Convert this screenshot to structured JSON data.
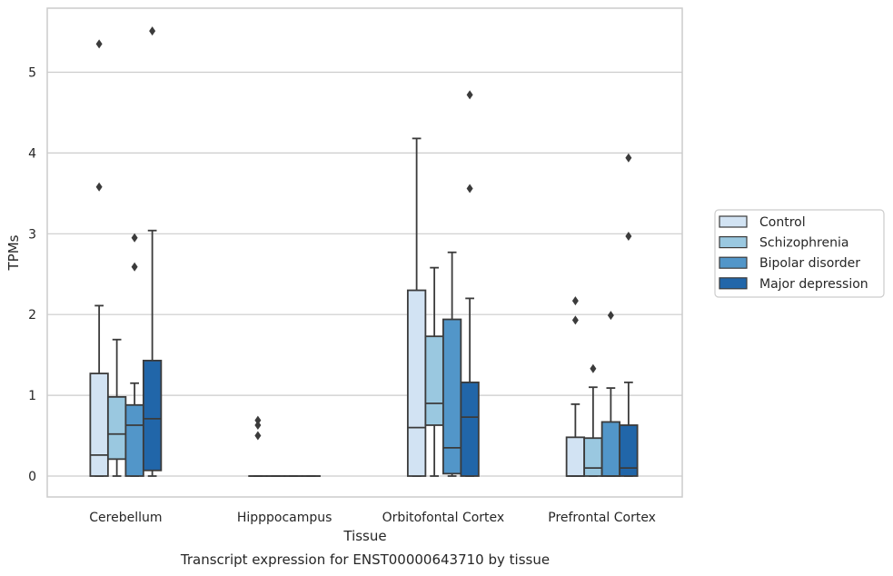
{
  "caption": "Transcript expression for ENST00000643710 by tissue",
  "chart_data": {
    "type": "box",
    "title": "",
    "xlabel": "Tissue",
    "ylabel": "TPMs",
    "ylim": [
      -0.27,
      5.87
    ],
    "yticks": [
      0,
      1,
      2,
      3,
      4,
      5
    ],
    "grid": "horizontal",
    "legend_position": "right",
    "categories": [
      "Cerebellum",
      "Hipppocampus",
      "Orbitofontal Cortex",
      "Prefrontal Cortex"
    ],
    "series": [
      {
        "name": "Control",
        "color": "#d2e3f3",
        "boxes": [
          {
            "whisker_low": 0,
            "q1": 0,
            "median": 0.26,
            "q3": 1.27,
            "whisker_high": 2.11,
            "outliers": [
              3.58,
              5.35
            ]
          },
          {
            "whisker_low": 0,
            "q1": 0,
            "median": 0,
            "q3": 0,
            "whisker_high": 0,
            "outliers": [
              0.5,
              0.63,
              0.69
            ]
          },
          {
            "whisker_low": 0,
            "q1": 0,
            "median": 0.6,
            "q3": 2.3,
            "whisker_high": 4.18,
            "outliers": []
          },
          {
            "whisker_low": 0,
            "q1": 0,
            "median": 0,
            "q3": 0.48,
            "whisker_high": 0.89,
            "outliers": [
              1.93,
              2.17
            ]
          }
        ]
      },
      {
        "name": "Schizophrenia",
        "color": "#9ac8e0",
        "boxes": [
          {
            "whisker_low": 0,
            "q1": 0.21,
            "median": 0.52,
            "q3": 0.98,
            "whisker_high": 1.69,
            "outliers": []
          },
          {
            "whisker_low": 0,
            "q1": 0,
            "median": 0,
            "q3": 0,
            "whisker_high": 0,
            "outliers": []
          },
          {
            "whisker_low": 0,
            "q1": 0.63,
            "median": 0.9,
            "q3": 1.73,
            "whisker_high": 2.58,
            "outliers": []
          },
          {
            "whisker_low": 0,
            "q1": 0,
            "median": 0.1,
            "q3": 0.47,
            "whisker_high": 1.1,
            "outliers": [
              1.33
            ]
          }
        ]
      },
      {
        "name": "Bipolar disorder",
        "color": "#5296c9",
        "boxes": [
          {
            "whisker_low": 0,
            "q1": 0,
            "median": 0.63,
            "q3": 0.88,
            "whisker_high": 1.15,
            "outliers": [
              2.59,
              2.95
            ]
          },
          {
            "whisker_low": 0,
            "q1": 0,
            "median": 0,
            "q3": 0,
            "whisker_high": 0,
            "outliers": []
          },
          {
            "whisker_low": 0,
            "q1": 0.03,
            "median": 0.35,
            "q3": 1.94,
            "whisker_high": 2.77,
            "outliers": []
          },
          {
            "whisker_low": 0,
            "q1": 0,
            "median": 0,
            "q3": 0.67,
            "whisker_high": 1.09,
            "outliers": [
              1.99
            ]
          }
        ]
      },
      {
        "name": "Major depression",
        "color": "#2166a9",
        "boxes": [
          {
            "whisker_low": 0,
            "q1": 0.07,
            "median": 0.71,
            "q3": 1.43,
            "whisker_high": 3.04,
            "outliers": [
              5.51
            ]
          },
          {
            "whisker_low": 0,
            "q1": 0,
            "median": 0,
            "q3": 0,
            "whisker_high": 0,
            "outliers": []
          },
          {
            "whisker_low": 0,
            "q1": 0,
            "median": 0.73,
            "q3": 1.16,
            "whisker_high": 2.2,
            "outliers": [
              3.56,
              4.72
            ]
          },
          {
            "whisker_low": 0,
            "q1": 0,
            "median": 0.1,
            "q3": 0.63,
            "whisker_high": 1.16,
            "outliers": [
              2.97,
              3.94
            ]
          }
        ]
      }
    ]
  },
  "colors": {
    "grid": "#cccccc",
    "frame": "#cccccc",
    "box_edge": "#3b3b3b"
  }
}
